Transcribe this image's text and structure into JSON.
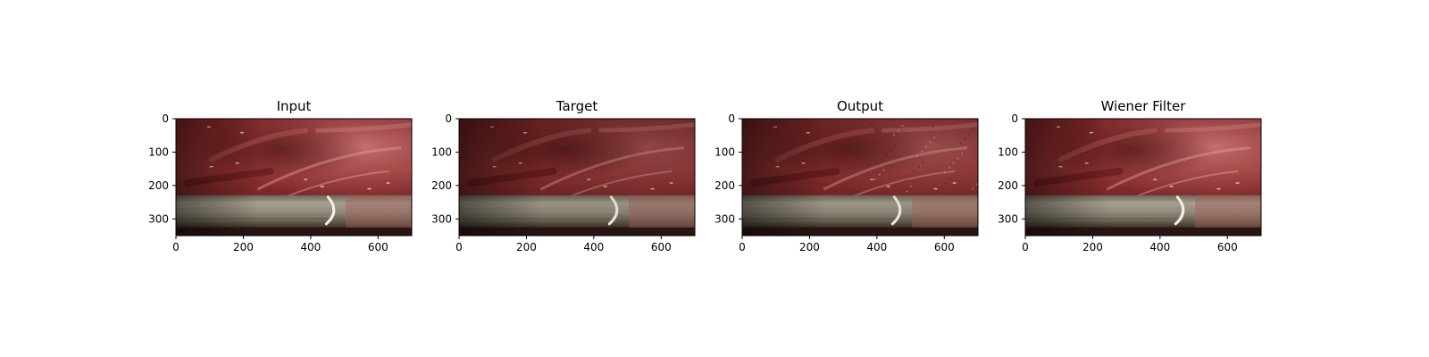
{
  "figure": {
    "panels": [
      {
        "title": "Input",
        "variant": "input"
      },
      {
        "title": "Target",
        "variant": "target"
      },
      {
        "title": "Output",
        "variant": "output"
      },
      {
        "title": "Wiener Filter",
        "variant": "wiener"
      }
    ],
    "x_axis": {
      "range": [
        0,
        700
      ],
      "ticks": [
        0,
        200,
        400,
        600
      ],
      "labels": [
        "0",
        "200",
        "400",
        "600"
      ]
    },
    "y_axis": {
      "range": [
        0,
        350
      ],
      "inverted": true,
      "ticks": [
        0,
        100,
        200,
        300
      ],
      "labels": [
        "0",
        "100",
        "200",
        "300"
      ]
    },
    "colors": {
      "tissue_dark": "#6a1a1a",
      "tissue_mid": "#9a3535",
      "tissue_light": "#d47f80",
      "instrument": "#8d8676",
      "instrument_shadow": "#3a3328",
      "highlight": "#f2efe8"
    }
  }
}
